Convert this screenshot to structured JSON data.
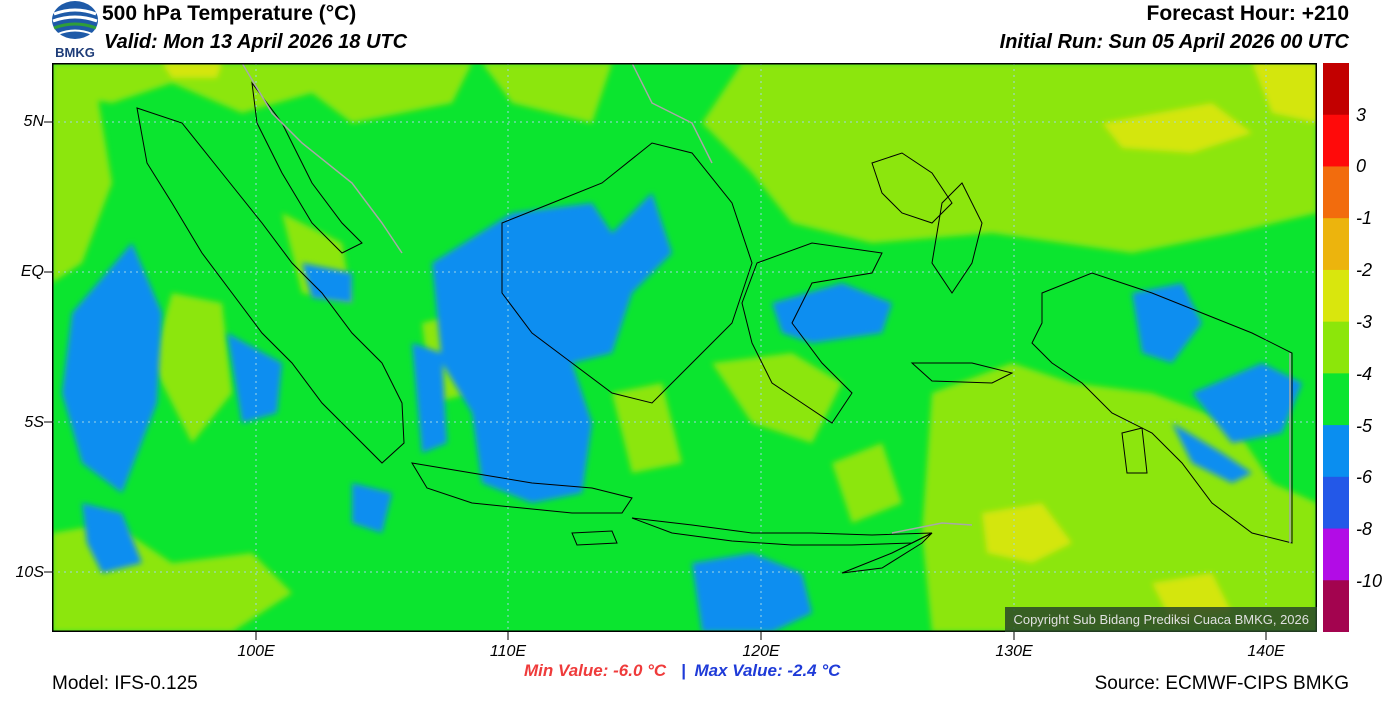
{
  "header": {
    "title": "500 hPa Temperature (°C)",
    "valid": "Valid: Mon 13 April 2026 18 UTC",
    "forecast_hour": "Forecast Hour: +210",
    "initial_run": "Initial Run: Sun 05 April 2026 00 UTC",
    "logo_text": "BMKG"
  },
  "map": {
    "lat_labels": [
      "5N",
      "EQ",
      "5S",
      "10S"
    ],
    "lon_labels": [
      "100E",
      "110E",
      "120E",
      "130E",
      "140E"
    ],
    "extent": {
      "lon": [
        92,
        142
      ],
      "lat": [
        -12,
        7
      ]
    },
    "copyright": "Copyright Sub Bidang Prediksi Cuaca BMKG, 2026",
    "field_colors": {
      "bright_green": "#0be52f",
      "yellow_green": "#8ce60a",
      "light_yellow": "#d4e60f",
      "blue": "#0a8ef0",
      "grid": "#9fd6e6"
    }
  },
  "colorbar": {
    "labels": [
      "3",
      "0",
      "-1",
      "-2",
      "-3",
      "-4",
      "-5",
      "-6",
      "-8",
      "-10"
    ],
    "colors": [
      "#c20000",
      "#ff0a0a",
      "#f26c0d",
      "#ecb40d",
      "#d9e60d",
      "#8ce60a",
      "#0be52f",
      "#0a8ef0",
      "#2358e8",
      "#b20ce6",
      "#a3044f"
    ]
  },
  "footer": {
    "min_value": "Min Value: -6.0 °C",
    "separator": "|",
    "max_value": "Max Value: -2.4 °C",
    "model": "Model: IFS-0.125",
    "source": "Source: ECMWF-CIPS BMKG"
  }
}
